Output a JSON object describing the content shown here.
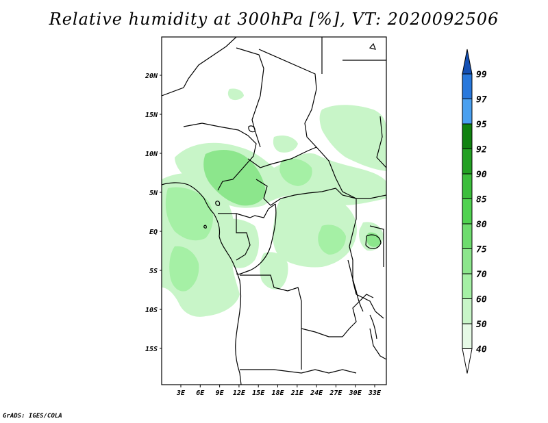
{
  "title": "Relative humidity at 300hPa [%], VT: 2020092506",
  "credit": "GrADS: IGES/COLA",
  "lat_labels": [
    "20N",
    "15N",
    "10N",
    "5N",
    "EQ",
    "5S",
    "10S",
    "15S"
  ],
  "lon_labels": [
    "3E",
    "6E",
    "9E",
    "12E",
    "15E",
    "18E",
    "21E",
    "24E",
    "27E",
    "30E",
    "33E"
  ],
  "colorbar": {
    "labels": [
      "40",
      "50",
      "60",
      "70",
      "75",
      "80",
      "85",
      "90",
      "92",
      "95",
      "97",
      "99"
    ],
    "colors": [
      "#ffffff",
      "#e6fae6",
      "#c8f5c8",
      "#a5f0a5",
      "#8ce68c",
      "#6edc6e",
      "#50d250",
      "#3cbe3c",
      "#23a023",
      "#108210",
      "#4aa0f0",
      "#2878dc",
      "#1450b4"
    ]
  },
  "map": {
    "projection": "lat-lon",
    "lon_range": [
      0,
      35
    ],
    "lat_range": [
      -20,
      25
    ],
    "field": "relative humidity 300hPa",
    "units": "%"
  }
}
